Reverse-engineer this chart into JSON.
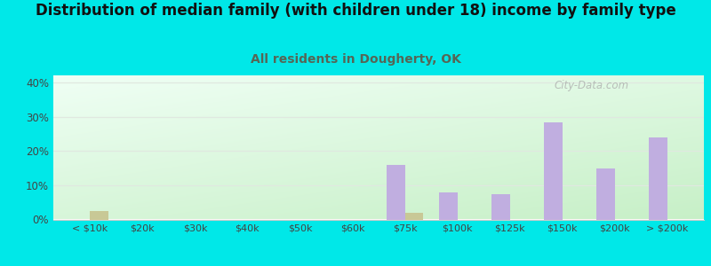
{
  "title": "Distribution of median family (with children under 18) income by family type",
  "subtitle": "All residents in Dougherty, OK",
  "categories": [
    "< $10k",
    "$20k",
    "$30k",
    "$40k",
    "$50k",
    "$60k",
    "$75k",
    "$100k",
    "$125k",
    "$150k",
    "$200k",
    "> $200k"
  ],
  "married_couple": [
    0,
    0,
    0,
    0,
    0,
    0,
    16,
    8,
    7.5,
    28.5,
    15,
    24
  ],
  "male_no_wife": [
    2.5,
    0,
    0,
    0,
    0,
    0,
    2,
    0,
    0,
    0,
    0,
    0
  ],
  "married_color": "#c0aee0",
  "male_color": "#c8c896",
  "bg_color_topleft": "#f0fff8",
  "bg_color_bottomright": "#c8eec8",
  "outer_bg": "#00e8e8",
  "title_fontsize": 12,
  "subtitle_fontsize": 10,
  "ylim": [
    0,
    42
  ],
  "bar_width": 0.35,
  "watermark": "City-Data.com",
  "subtitle_color": "#556655",
  "gridline_color": "#e0e8e0"
}
